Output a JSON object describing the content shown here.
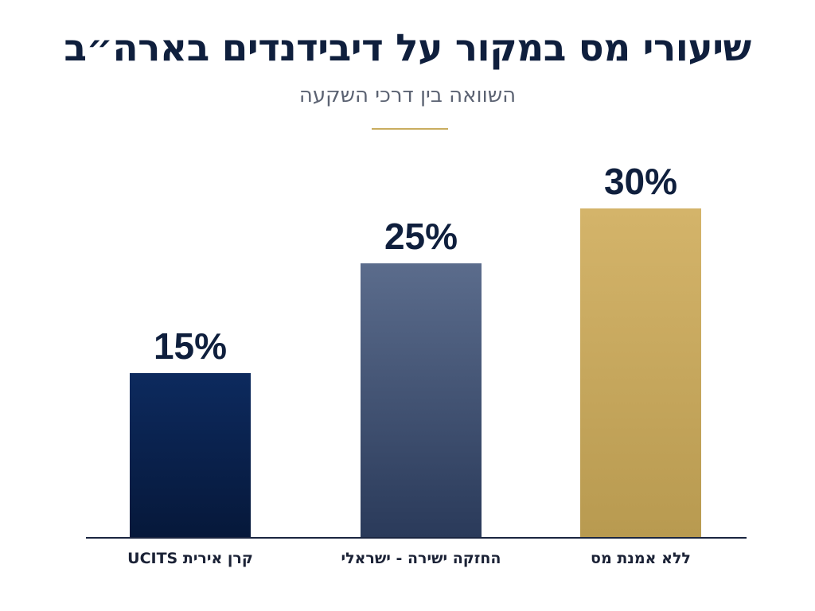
{
  "header": {
    "title": "שיעורי מס במקור על דיבידנדים בארה״ב",
    "subtitle": "השוואה בין דרכי השקעה"
  },
  "colors": {
    "navy": "#0b2352",
    "slate": "#4d5f80",
    "gold": "#caa95e",
    "accent": "#c9ad5f"
  },
  "chart_data": {
    "type": "bar",
    "title": "שיעורי מס במקור על דיבידנדים בארה״ב",
    "subtitle": "השוואה בין דרכי השקעה",
    "xlabel": "",
    "ylabel": "",
    "ylim": [
      0,
      30
    ],
    "grid": false,
    "legend": "none",
    "unit": "%",
    "categories": [
      "קרן אירית UCITS",
      "החזקה ישירה - ישראלי",
      "ללא אמנת מס"
    ],
    "values": [
      15,
      25,
      30
    ],
    "labels": [
      "15%",
      "25%",
      "30%"
    ]
  }
}
